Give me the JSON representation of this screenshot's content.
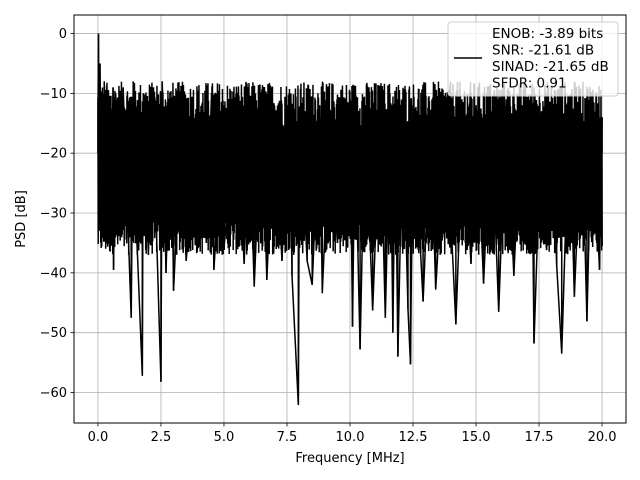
{
  "chart_data": {
    "type": "line",
    "xlabel": "Frequency [MHz]",
    "ylabel": "PSD [dB]",
    "xlim": [
      -0.95,
      20.95
    ],
    "ylim": [
      -65.1,
      3.1
    ],
    "x_ticks": [
      0.0,
      2.5,
      5.0,
      7.5,
      10.0,
      12.5,
      15.0,
      17.5,
      20.0
    ],
    "x_tick_labels": [
      "0.0",
      "2.5",
      "5.0",
      "7.5",
      "10.0",
      "12.5",
      "15.0",
      "17.5",
      "20.0"
    ],
    "y_ticks": [
      0,
      -10,
      -20,
      -30,
      -40,
      -50,
      -60
    ],
    "y_tick_labels": [
      "0",
      "−10",
      "−20",
      "−30",
      "−40",
      "−50",
      "−60"
    ],
    "grid": true,
    "legend_position": "top-right",
    "series": [
      {
        "name": "ENOB: -3.89 bits\nSNR: -21.61 dB\nSINAD: -21.65 dB\nSFDR: 0.91",
        "color": "#000000",
        "noise_floor": {
          "x_range": [
            0.0,
            20.0
          ],
          "upper_db": -12,
          "lower_db": -34
        },
        "points": [
          [
            0.0,
            -16
          ],
          [
            0.02,
            0.0
          ],
          [
            0.05,
            -27
          ],
          [
            0.08,
            -5
          ],
          [
            0.12,
            -22
          ],
          [
            0.15,
            -10
          ],
          [
            0.2,
            -30
          ],
          [
            0.25,
            -8
          ],
          [
            0.3,
            -32
          ],
          [
            0.35,
            -9
          ],
          [
            0.4,
            -28
          ],
          [
            0.45,
            -11
          ],
          [
            0.5,
            -35
          ],
          [
            0.6,
            -9
          ],
          [
            0.62,
            -39.5
          ],
          [
            0.7,
            -10
          ],
          [
            0.8,
            -31
          ],
          [
            1.0,
            -9
          ],
          [
            1.2,
            -33
          ],
          [
            1.4,
            -8
          ],
          [
            1.32,
            -47.5
          ],
          [
            1.5,
            -22
          ],
          [
            1.55,
            -35
          ],
          [
            1.76,
            -57.2
          ],
          [
            1.8,
            -10
          ],
          [
            2.0,
            -37
          ],
          [
            2.2,
            -9
          ],
          [
            2.3,
            -30
          ],
          [
            2.5,
            -58.2
          ],
          [
            2.55,
            -8
          ],
          [
            2.7,
            -40
          ],
          [
            2.9,
            -11
          ],
          [
            3.0,
            -43
          ],
          [
            3.3,
            -15
          ],
          [
            3.5,
            -38
          ],
          [
            4.0,
            -14
          ],
          [
            4.3,
            -35
          ],
          [
            4.5,
            -11
          ],
          [
            4.6,
            -39.5
          ],
          [
            5.0,
            -12
          ],
          [
            5.0,
            -36
          ],
          [
            5.5,
            -11
          ],
          [
            5.8,
            -38.5
          ],
          [
            6.0,
            -16
          ],
          [
            6.2,
            -42.3
          ],
          [
            6.5,
            -11
          ],
          [
            6.7,
            -41.2
          ],
          [
            7.0,
            -12
          ],
          [
            7.3,
            -38
          ],
          [
            7.6,
            -10
          ],
          [
            7.7,
            -40.5
          ],
          [
            7.95,
            -62.1
          ],
          [
            8.0,
            -13
          ],
          [
            8.3,
            -38
          ],
          [
            8.5,
            -42
          ],
          [
            8.8,
            -12
          ],
          [
            8.9,
            -43.4
          ],
          [
            9.2,
            -14
          ],
          [
            9.5,
            -35
          ],
          [
            10.0,
            -11
          ],
          [
            10.1,
            -49
          ],
          [
            10.2,
            -15
          ],
          [
            10.4,
            -52.8
          ],
          [
            10.6,
            -12
          ],
          [
            10.9,
            -46.3
          ],
          [
            11.2,
            -13
          ],
          [
            11.4,
            -47.5
          ],
          [
            11.6,
            -12
          ],
          [
            11.7,
            -50
          ],
          [
            11.8,
            -15
          ],
          [
            11.9,
            -54
          ],
          [
            12.1,
            -13
          ],
          [
            12.3,
            -46
          ],
          [
            12.4,
            -55.3
          ],
          [
            12.5,
            -12
          ],
          [
            12.9,
            -44.8
          ],
          [
            13.2,
            -14
          ],
          [
            13.4,
            -42.8
          ],
          [
            13.8,
            -13
          ],
          [
            14.2,
            -48.6
          ],
          [
            14.5,
            -14
          ],
          [
            14.8,
            -38.5
          ],
          [
            15.0,
            -12
          ],
          [
            15.3,
            -41.8
          ],
          [
            15.6,
            -13
          ],
          [
            15.9,
            -46.5
          ],
          [
            16.2,
            -11
          ],
          [
            16.5,
            -40.5
          ],
          [
            16.8,
            -13
          ],
          [
            17.0,
            -35
          ],
          [
            17.2,
            -12
          ],
          [
            17.3,
            -51.8
          ],
          [
            17.6,
            -13
          ],
          [
            17.8,
            -36.2
          ],
          [
            18.0,
            -14
          ],
          [
            18.2,
            -38.7
          ],
          [
            18.4,
            -53.5
          ],
          [
            18.7,
            -12
          ],
          [
            18.9,
            -44
          ],
          [
            19.2,
            -14
          ],
          [
            19.4,
            -48.1
          ],
          [
            19.6,
            -12
          ],
          [
            19.9,
            -39.5
          ],
          [
            20.0,
            -14
          ]
        ]
      }
    ]
  }
}
